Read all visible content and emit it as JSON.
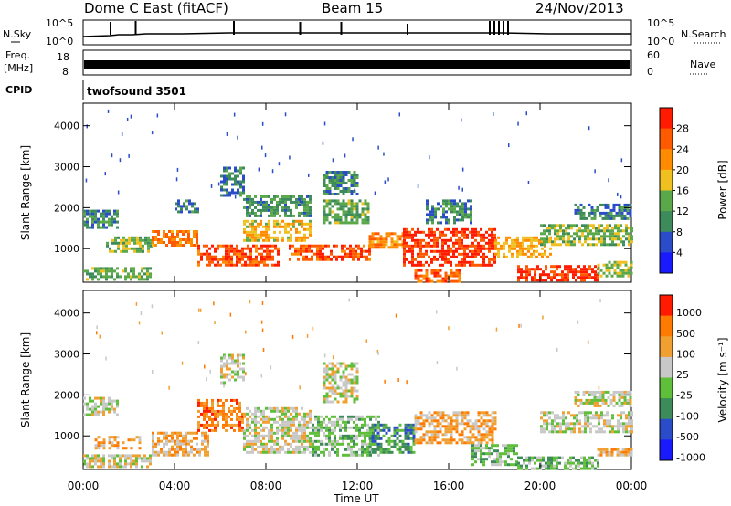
{
  "header": {
    "station": "Dome C East (fitACF)",
    "beam": "Beam 15",
    "date": "24/Nov/2013"
  },
  "noise_panel": {
    "left_label": "N.Sky",
    "left_ticks": [
      "10^5",
      "10^0"
    ],
    "right_label": "N.Search",
    "right_ticks": [
      "10^5",
      "10^0"
    ]
  },
  "freq_panel": {
    "left_label_line1": "Freq.",
    "left_label_line2": "[MHz]",
    "left_ticks": [
      "18",
      "8"
    ],
    "right_label": "Nave",
    "right_ticks": [
      "60",
      "0"
    ]
  },
  "cpid_panel": {
    "label": "CPID",
    "value": "twofsound 3501"
  },
  "colors": {
    "power_scale": [
      "#1a1aff",
      "#2a4cc8",
      "#3d8a5a",
      "#5aa84a",
      "#f0c020",
      "#ff8c00",
      "#ff5a00",
      "#ff1a00"
    ],
    "velocity_scale": [
      "#1a1aff",
      "#2a4cc8",
      "#3d8a5a",
      "#5fbf3a",
      "#c8c8c8",
      "#f0a030",
      "#ff7a00",
      "#ff1a00"
    ]
  },
  "chart_data": [
    {
      "type": "heatmap",
      "name": "power",
      "ylabel": "Slant Range [km]",
      "yticks": [
        1000,
        2000,
        3000,
        4000
      ],
      "ylim": [
        180,
        4550
      ],
      "colorbar_label": "Power [dB]",
      "colorbar_range": [
        0,
        32
      ],
      "colorbar_ticks": [
        4,
        8,
        12,
        16,
        20,
        24,
        28
      ],
      "echo_regions": [
        {
          "t0": 0.0,
          "t1": 1.5,
          "r0": 1500,
          "r1": 1950,
          "level": 10
        },
        {
          "t0": 0.0,
          "t1": 3.0,
          "r0": 250,
          "r1": 550,
          "level": 13
        },
        {
          "t0": 1.0,
          "t1": 3.0,
          "r0": 900,
          "r1": 1300,
          "level": 15
        },
        {
          "t0": 3.0,
          "t1": 5.0,
          "r0": 1100,
          "r1": 1450,
          "level": 23
        },
        {
          "t0": 4.0,
          "t1": 5.0,
          "r0": 1900,
          "r1": 2200,
          "level": 9
        },
        {
          "t0": 5.0,
          "t1": 8.5,
          "r0": 600,
          "r1": 1100,
          "level": 27
        },
        {
          "t0": 6.0,
          "t1": 7.0,
          "r0": 2300,
          "r1": 3000,
          "level": 9
        },
        {
          "t0": 7.0,
          "t1": 10.0,
          "r0": 1200,
          "r1": 1700,
          "level": 19
        },
        {
          "t0": 7.0,
          "t1": 10.0,
          "r0": 1800,
          "r1": 2300,
          "level": 11
        },
        {
          "t0": 9.0,
          "t1": 12.5,
          "r0": 700,
          "r1": 1100,
          "level": 27
        },
        {
          "t0": 10.5,
          "t1": 12.5,
          "r0": 1600,
          "r1": 2200,
          "level": 13
        },
        {
          "t0": 10.5,
          "t1": 12.0,
          "r0": 2300,
          "r1": 2900,
          "level": 10
        },
        {
          "t0": 12.5,
          "t1": 14.0,
          "r0": 1000,
          "r1": 1400,
          "level": 23
        },
        {
          "t0": 14.0,
          "t1": 18.0,
          "r0": 600,
          "r1": 1500,
          "level": 29
        },
        {
          "t0": 14.5,
          "t1": 16.5,
          "r0": 200,
          "r1": 500,
          "level": 26
        },
        {
          "t0": 15.0,
          "t1": 17.0,
          "r0": 1600,
          "r1": 2200,
          "level": 10
        },
        {
          "t0": 18.0,
          "t1": 20.5,
          "r0": 800,
          "r1": 1300,
          "level": 20
        },
        {
          "t0": 19.0,
          "t1": 22.5,
          "r0": 200,
          "r1": 600,
          "level": 29
        },
        {
          "t0": 20.0,
          "t1": 24.0,
          "r0": 1100,
          "r1": 1600,
          "level": 15
        },
        {
          "t0": 21.5,
          "t1": 24.0,
          "r0": 1700,
          "r1": 2100,
          "level": 9
        },
        {
          "t0": 22.5,
          "t1": 24.0,
          "r0": 300,
          "r1": 700,
          "level": 16
        }
      ]
    },
    {
      "type": "heatmap",
      "name": "velocity",
      "ylabel": "Slant Range [km]",
      "yticks": [
        1000,
        2000,
        3000,
        4000
      ],
      "ylim": [
        180,
        4550
      ],
      "colorbar_label": "Velocity [m s⁻¹]",
      "colorbar_ticks": [
        "1000",
        "500",
        "100",
        "25",
        "-25",
        "-100",
        "-500",
        "-1000"
      ],
      "echo_regions": [
        {
          "t0": 0.0,
          "t1": 1.5,
          "r0": 1500,
          "r1": 1950,
          "level": 4
        },
        {
          "t0": 0.0,
          "t1": 3.0,
          "r0": 250,
          "r1": 550,
          "level": 4
        },
        {
          "t0": 0.5,
          "t1": 2.5,
          "r0": 700,
          "r1": 1000,
          "level": 5
        },
        {
          "t0": 3.0,
          "t1": 5.5,
          "r0": 500,
          "r1": 1100,
          "level": 5
        },
        {
          "t0": 5.0,
          "t1": 7.0,
          "r0": 1100,
          "r1": 1900,
          "level": 6
        },
        {
          "t0": 6.0,
          "t1": 7.0,
          "r0": 2300,
          "r1": 3000,
          "level": 4
        },
        {
          "t0": 7.0,
          "t1": 10.0,
          "r0": 600,
          "r1": 1700,
          "level": 4
        },
        {
          "t0": 10.0,
          "t1": 13.0,
          "r0": 500,
          "r1": 1500,
          "level": 3
        },
        {
          "t0": 10.5,
          "t1": 12.0,
          "r0": 1800,
          "r1": 2800,
          "level": 4
        },
        {
          "t0": 12.5,
          "t1": 14.5,
          "r0": 600,
          "r1": 1300,
          "level": 2
        },
        {
          "t0": 14.5,
          "t1": 18.0,
          "r0": 800,
          "r1": 1600,
          "level": 5
        },
        {
          "t0": 17.0,
          "t1": 19.0,
          "r0": 300,
          "r1": 800,
          "level": 3
        },
        {
          "t0": 19.0,
          "t1": 22.5,
          "r0": 200,
          "r1": 500,
          "level": 3
        },
        {
          "t0": 20.0,
          "t1": 24.0,
          "r0": 1100,
          "r1": 1600,
          "level": 4
        },
        {
          "t0": 21.5,
          "t1": 24.0,
          "r0": 1700,
          "r1": 2100,
          "level": 4
        },
        {
          "t0": 22.5,
          "t1": 24.0,
          "r0": 500,
          "r1": 700,
          "level": 5
        }
      ]
    }
  ],
  "time_axis": {
    "label": "Time UT",
    "ticks": [
      "00:00",
      "04:00",
      "08:00",
      "12:00",
      "16:00",
      "20:00",
      "00:00"
    ]
  }
}
